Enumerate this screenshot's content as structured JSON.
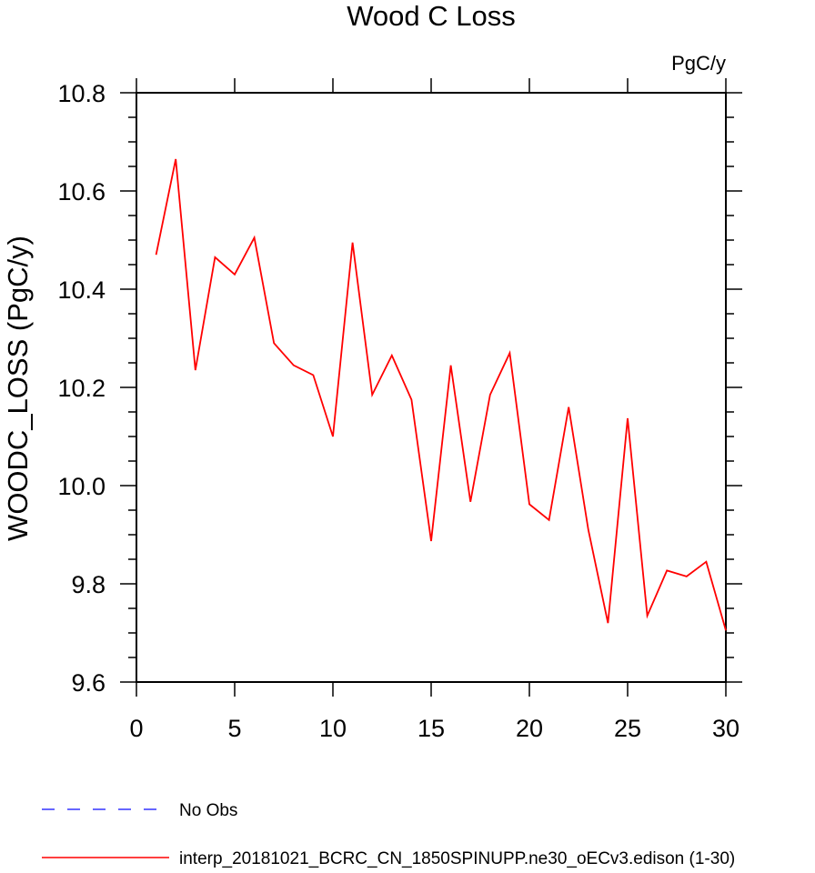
{
  "chart_data": {
    "type": "line",
    "title": "Wood C Loss",
    "units_label": "PgC/y",
    "ylabel": "WOODC_LOSS  (PgC/y)",
    "xlabel": "",
    "xlim": [
      0,
      30
    ],
    "ylim": [
      9.6,
      10.8
    ],
    "x_ticks": [
      0,
      5,
      10,
      15,
      20,
      25,
      30
    ],
    "x_tick_labels": [
      "0",
      "5",
      "10",
      "15",
      "20",
      "25",
      "30"
    ],
    "y_ticks": [
      9.6,
      9.8,
      10.0,
      10.2,
      10.4,
      10.6,
      10.8
    ],
    "y_tick_labels": [
      "9.6",
      "9.8",
      "10.0",
      "10.2",
      "10.4",
      "10.6",
      "10.8"
    ],
    "grid": false,
    "legend_position": "bottom-left",
    "series": [
      {
        "name": "interp_20181021_BCRC_CN_1850SPINUPP.ne30_oECv3.edison (1-30)",
        "color": "#ff0000",
        "dash": "solid",
        "x": [
          1,
          2,
          3,
          4,
          5,
          6,
          7,
          8,
          9,
          10,
          11,
          12,
          13,
          14,
          15,
          16,
          17,
          18,
          19,
          20,
          21,
          22,
          23,
          24,
          25,
          26,
          27,
          28,
          29,
          30
        ],
        "values": [
          10.47,
          10.665,
          10.235,
          10.465,
          10.43,
          10.505,
          10.29,
          10.245,
          10.225,
          10.1,
          10.495,
          10.185,
          10.265,
          10.175,
          9.887,
          10.245,
          9.967,
          10.185,
          10.27,
          9.962,
          9.93,
          10.16,
          9.91,
          9.72,
          10.137,
          9.735,
          9.827,
          9.815,
          9.845,
          9.705
        ]
      }
    ],
    "legend": [
      {
        "label": "No Obs",
        "color": "#3333ff",
        "dash": "dashed"
      },
      {
        "label": "interp_20181021_BCRC_CN_1850SPINUPP.ne30_oECv3.edison (1-30)",
        "color": "#ff0000",
        "dash": "solid"
      }
    ]
  }
}
